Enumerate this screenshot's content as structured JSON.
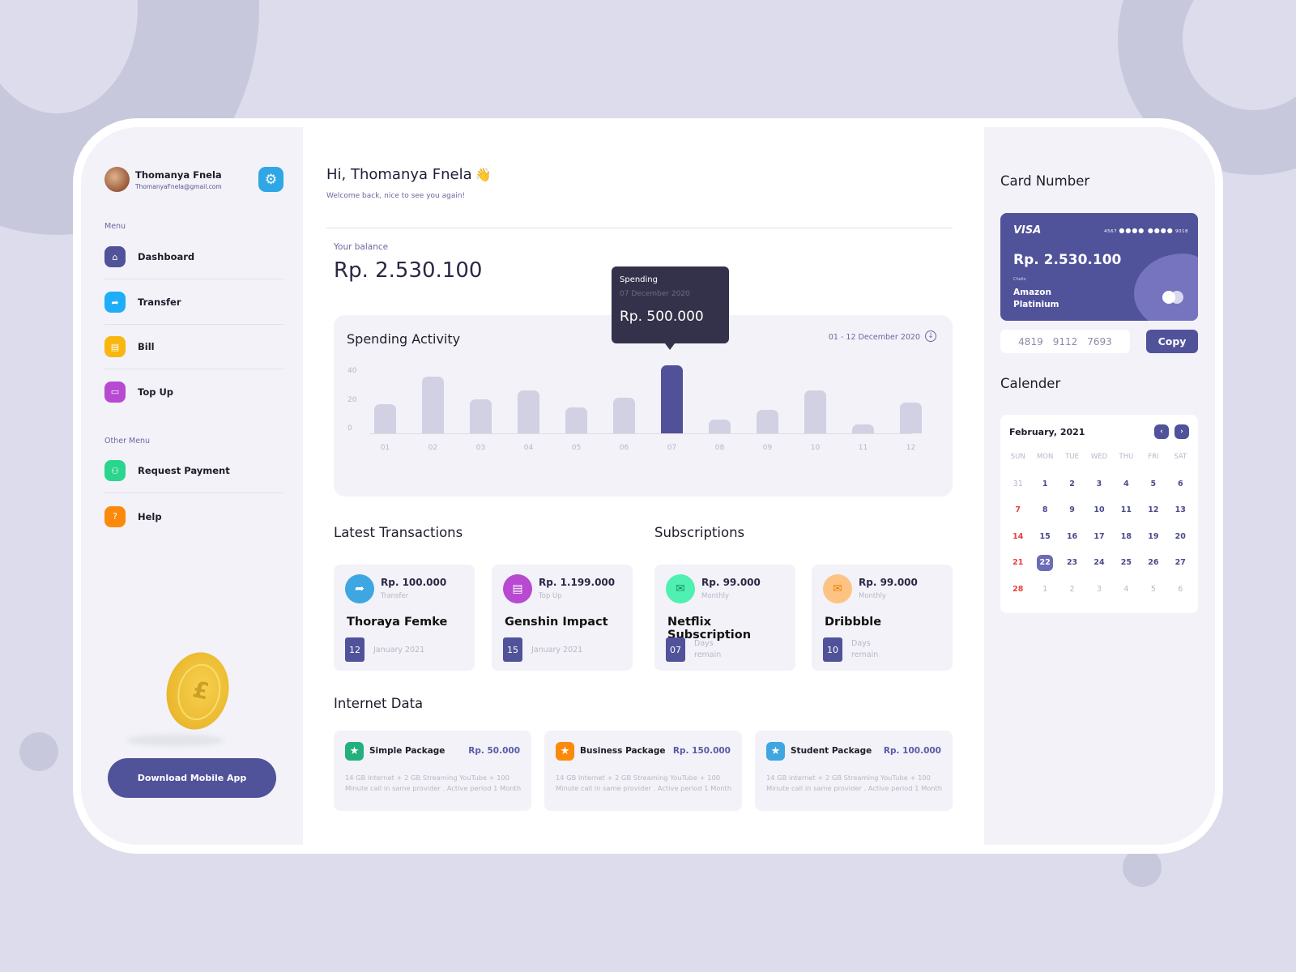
{
  "user": {
    "name": "Thomanya Fnela",
    "email": "ThomanyaFnela@gmail.com"
  },
  "sidebar": {
    "menu_label": "Menu",
    "menu": [
      {
        "label": "Dashboard",
        "icon": "home-icon",
        "glyph": "⌂",
        "color": "#50529a"
      },
      {
        "label": "Transfer",
        "icon": "share-arrow-icon",
        "glyph": "➦",
        "color": "#1eadf7"
      },
      {
        "label": "Bill",
        "icon": "bill-icon",
        "glyph": "▤",
        "color": "#f8b60f"
      },
      {
        "label": "Top Up",
        "icon": "card-icon",
        "glyph": "▭",
        "color": "#b74ad1"
      }
    ],
    "other_label": "Other Menu",
    "other": [
      {
        "label": "Request Payment",
        "icon": "users-icon",
        "glyph": "👥",
        "color": "#2ad68d"
      },
      {
        "label": "Help",
        "icon": "question-icon",
        "glyph": "?",
        "color": "#fb8a0c"
      }
    ],
    "download_label": "Download Mobile App"
  },
  "header": {
    "greeting": "Hi, Thomanya Fnela",
    "wave": "👋",
    "subtitle": "Welcome back, nice to see you again!"
  },
  "balance": {
    "label": "Your balance",
    "value": "Rp. 2.530.100"
  },
  "spending": {
    "title": "Spending Activity",
    "range": "01 - 12 December 2020",
    "tooltip": {
      "label": "Spending",
      "date": "07 December 2020",
      "value": "Rp. 500.000"
    }
  },
  "chart_data": {
    "type": "bar",
    "title": "Spending Activity",
    "categories": [
      "01",
      "02",
      "03",
      "04",
      "05",
      "06",
      "07",
      "08",
      "09",
      "10",
      "11",
      "12"
    ],
    "values": [
      19,
      37,
      22,
      28,
      17,
      23,
      44,
      9,
      15,
      28,
      6,
      20
    ],
    "highlighted_index": 6,
    "yticks": [
      "40",
      "20",
      "0"
    ],
    "ylim": [
      0,
      40
    ],
    "xlabel": "",
    "ylabel": "",
    "grid": false,
    "colors": {
      "bar": "#d2d1e3",
      "active": "#51519a"
    }
  },
  "transactions": {
    "title": "Latest Transactions",
    "items": [
      {
        "amount": "Rp. 100.000",
        "type": "Transfer",
        "name": "Thoraya Femke",
        "day": "12",
        "date": "January 2021",
        "color": "#3ea6e0",
        "glyph": "➦"
      },
      {
        "amount": "Rp. 1.199.000",
        "type": "Top Up",
        "name": "Genshin Impact",
        "day": "15",
        "date": "January 2021",
        "color": "#b74ad1",
        "glyph": "▤"
      }
    ]
  },
  "subscriptions": {
    "title": "Subscriptions",
    "items": [
      {
        "amount": "Rp. 99.000",
        "type": "Monthly",
        "name": "Netflix Subscription",
        "days": "07",
        "remain1": "Days",
        "remain2": "remain",
        "color": "#4ff0b2",
        "glyph": "✉"
      },
      {
        "amount": "Rp. 99.000",
        "type": "Monthly",
        "name": "Dribbble",
        "days": "10",
        "remain1": "Days",
        "remain2": "remain",
        "color": "#fdc383",
        "glyph": "✉"
      }
    ]
  },
  "internet": {
    "title": "Internet Data",
    "items": [
      {
        "name": "Simple Package",
        "price": "Rp. 50.000",
        "desc": "14 GB Internet + 2 GB Streaming YouTube + 100 Minute call in same provider . Active period 1 Month",
        "color": "#23b07c"
      },
      {
        "name": "Business Package",
        "price": "Rp. 150.000",
        "desc": "14 GB Internet + 2 GB Streaming YouTube + 100 Minute call in same provider . Active period 1 Month",
        "color": "#fb8a0c"
      },
      {
        "name": "Student Package",
        "price": "Rp. 100.000",
        "desc": "14 GB internet + 2 GB Streaming YouTube + 100 Minute call in same provider . Active period 1 Month",
        "color": "#3ea6e0"
      }
    ]
  },
  "card": {
    "title": "Card Number",
    "brand": "VISA",
    "masked_start": "4567",
    "masked_dots": "●●●● ●●●●",
    "masked_end": "9018",
    "balance": "Rp. 2.530.100",
    "holder": "Chello",
    "name_line1": "Amazon",
    "name_line2": "Platinium",
    "number_parts": [
      "4819",
      "9112",
      "7693"
    ],
    "copy_label": "Copy"
  },
  "calendar": {
    "title": "Calender",
    "month": "February, 2021",
    "prev": "‹",
    "next": "›",
    "dow": [
      "SUN",
      "MON",
      "TUE",
      "WED",
      "THU",
      "FRI",
      "SAT"
    ],
    "days": [
      "31",
      "1",
      "2",
      "3",
      "4",
      "5",
      "6",
      "7",
      "8",
      "9",
      "10",
      "11",
      "12",
      "13",
      "14",
      "15",
      "16",
      "17",
      "18",
      "19",
      "20",
      "21",
      "22",
      "23",
      "24",
      "25",
      "26",
      "27",
      "28",
      "1",
      "2",
      "3",
      "4",
      "5",
      "6"
    ],
    "muted_indices": [
      0,
      29,
      30,
      31,
      32,
      33,
      34
    ],
    "today_index": 22
  }
}
